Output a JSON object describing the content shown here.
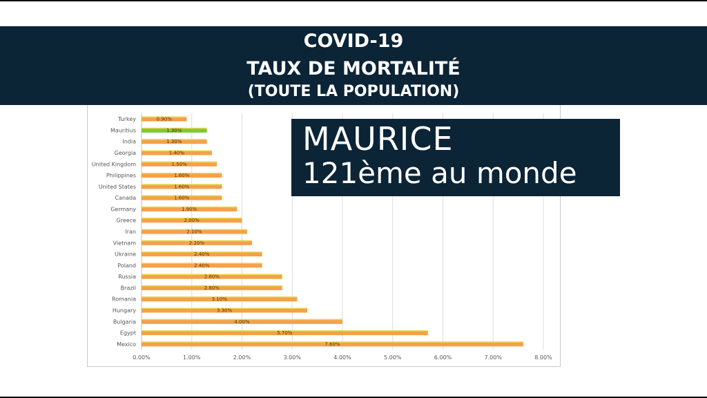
{
  "banner": {
    "line1": "COVID-19",
    "line2": "TAUX DE MORTALITÉ",
    "line3": "(TOUTE LA POPULATION)"
  },
  "callout": {
    "line1": "MAURICE",
    "line2": "121ème au monde"
  },
  "colors": {
    "banner_bg": "#0b2436",
    "bar": "#f5a04a",
    "bar_highlight": "#7cc83a",
    "bar_edge": "#e8d84a"
  },
  "chart_data": {
    "type": "bar",
    "orientation": "horizontal",
    "categories": [
      "Turkey",
      "Mauritius",
      "India",
      "Georgia",
      "United Kingdom",
      "Philippines",
      "United States",
      "Canada",
      "Germany",
      "Greece",
      "Iran",
      "Vietnam",
      "Ukraine",
      "Poland",
      "Russia",
      "Brazil",
      "Romania",
      "Hungary",
      "Bulgaria",
      "Egypt",
      "Mexico"
    ],
    "values": [
      0.009,
      0.013,
      0.013,
      0.014,
      0.015,
      0.016,
      0.016,
      0.016,
      0.019,
      0.02,
      0.021,
      0.022,
      0.024,
      0.024,
      0.028,
      0.028,
      0.031,
      0.033,
      0.04,
      0.057,
      0.076
    ],
    "data_labels": [
      "0.90%",
      "1.30%",
      "1.30%",
      "1.40%",
      "1.50%",
      "1.60%",
      "1.60%",
      "1.60%",
      "1.90%",
      "2.00%",
      "2.10%",
      "2.20%",
      "2.40%",
      "2.40%",
      "2.80%",
      "2.80%",
      "3.10%",
      "3.30%",
      "4.00%",
      "5.70%",
      "7.60%"
    ],
    "highlight": "Mauritius",
    "xlim": [
      0,
      0.08
    ],
    "x_ticks": [
      "0.00%",
      "1.00%",
      "2.00%",
      "3.00%",
      "4.00%",
      "5.00%",
      "6.00%",
      "7.00%",
      "8.00%"
    ],
    "grid": "vertical"
  }
}
